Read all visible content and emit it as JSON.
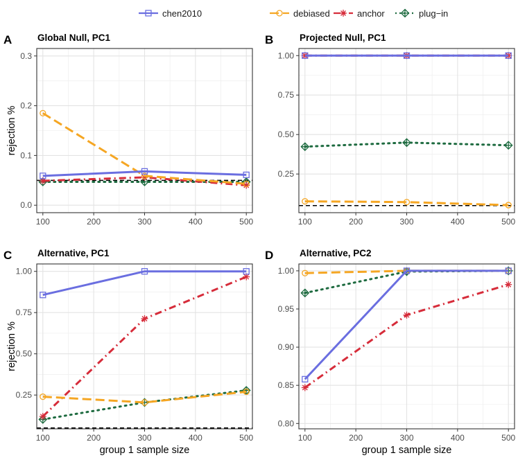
{
  "figure": {
    "legend": [
      {
        "name": "chen2010",
        "color": "#6a6ee0",
        "marker": "square",
        "dash": "solid"
      },
      {
        "name": "debiased",
        "color": "#f5a623",
        "marker": "circle",
        "dash": "longdash"
      },
      {
        "name": "anchor",
        "color": "#d62c3a",
        "marker": "asterisk",
        "dash": "dotdash"
      },
      {
        "name": "plug−in",
        "color": "#1e6b40",
        "marker": "diamondplus",
        "dash": "dotted"
      }
    ],
    "xlabel": "group 1 sample size",
    "ylabel": "rejection %"
  },
  "chart_data": [
    {
      "panel": "A",
      "title": "Global Null, PC1",
      "type": "line",
      "x": [
        100,
        300,
        500
      ],
      "xlim": [
        88,
        512
      ],
      "xticks": [
        100,
        200,
        300,
        400,
        500
      ],
      "ylim": [
        -0.015,
        0.315
      ],
      "yticks": [
        0.0,
        0.1,
        0.2,
        0.3
      ],
      "ytick_labels": [
        "0.0",
        "0.1",
        "0.2",
        "0.3"
      ],
      "reference_line": 0.05,
      "series": [
        {
          "name": "chen2010",
          "values": [
            0.059,
            0.068,
            0.061
          ]
        },
        {
          "name": "debiased",
          "values": [
            0.185,
            0.059,
            0.043
          ]
        },
        {
          "name": "anchor",
          "values": [
            0.049,
            0.056,
            0.04
          ]
        },
        {
          "name": "plug−in",
          "values": [
            0.047,
            0.047,
            0.047
          ]
        }
      ]
    },
    {
      "panel": "B",
      "title": "Projected Null, PC1",
      "type": "line",
      "x": [
        100,
        300,
        500
      ],
      "xlim": [
        88,
        512
      ],
      "xticks": [
        100,
        200,
        300,
        400,
        500
      ],
      "ylim": [
        0.005,
        1.045
      ],
      "yticks": [
        0.25,
        0.5,
        0.75,
        1.0
      ],
      "ytick_labels": [
        "0.25",
        "0.50",
        "0.75",
        "1.00"
      ],
      "reference_line": 0.05,
      "series": [
        {
          "name": "chen2010",
          "values": [
            1.0,
            1.0,
            1.0
          ]
        },
        {
          "name": "debiased",
          "values": [
            0.077,
            0.072,
            0.053
          ]
        },
        {
          "name": "anchor",
          "values": [
            1.0,
            1.0,
            1.0
          ]
        },
        {
          "name": "plug−in",
          "values": [
            0.423,
            0.449,
            0.432
          ]
        }
      ]
    },
    {
      "panel": "C",
      "title": "Alternative, PC1",
      "type": "line",
      "x": [
        100,
        300,
        500
      ],
      "xlim": [
        88,
        512
      ],
      "xticks": [
        100,
        200,
        300,
        400,
        500
      ],
      "ylim": [
        0.045,
        1.045
      ],
      "yticks": [
        0.25,
        0.5,
        0.75,
        1.0
      ],
      "ytick_labels": [
        "0.25",
        "0.50",
        "0.75",
        "1.00"
      ],
      "reference_line": 0.05,
      "series": [
        {
          "name": "chen2010",
          "values": [
            0.857,
            1.0,
            1.0
          ]
        },
        {
          "name": "debiased",
          "values": [
            0.24,
            0.205,
            0.27
          ]
        },
        {
          "name": "anchor",
          "values": [
            0.12,
            0.713,
            0.967
          ]
        },
        {
          "name": "plug−in",
          "values": [
            0.102,
            0.205,
            0.278
          ]
        }
      ]
    },
    {
      "panel": "D",
      "title": "Alternative, PC2",
      "type": "line",
      "x": [
        100,
        300,
        500
      ],
      "xlim": [
        88,
        512
      ],
      "xticks": [
        100,
        200,
        300,
        400,
        500
      ],
      "ylim": [
        0.793,
        1.009
      ],
      "yticks": [
        0.8,
        0.85,
        0.9,
        0.95,
        1.0
      ],
      "ytick_labels": [
        "0.80",
        "0.85",
        "0.90",
        "0.95",
        "1.00"
      ],
      "reference_line": null,
      "series": [
        {
          "name": "chen2010",
          "values": [
            0.858,
            1.0,
            1.0
          ]
        },
        {
          "name": "debiased",
          "values": [
            0.997,
            1.0,
            1.0
          ]
        },
        {
          "name": "anchor",
          "values": [
            0.847,
            0.942,
            0.982
          ]
        },
        {
          "name": "plug−in",
          "values": [
            0.971,
            0.999,
            1.0
          ]
        }
      ]
    }
  ]
}
